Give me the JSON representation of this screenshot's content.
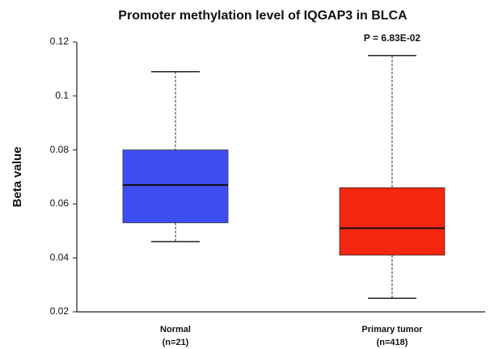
{
  "chart_data": {
    "type": "box",
    "title": "Promoter methylation level of IQGAP3 in BLCA",
    "ylabel": "Beta value",
    "categories": [
      "Normal",
      "Primary tumor"
    ],
    "category_notes": [
      "(n=21)",
      "(n=418)"
    ],
    "annotation": "P = 6.83E-02",
    "boxes": [
      {
        "color": "#3d4df0",
        "whisker_low": 0.046,
        "q1": 0.053,
        "median": 0.067,
        "q3": 0.08,
        "whisker_high": 0.109
      },
      {
        "color": "#f5260f",
        "whisker_low": 0.025,
        "q1": 0.041,
        "median": 0.051,
        "q3": 0.066,
        "whisker_high": 0.115
      }
    ],
    "ylim": [
      0.02,
      0.12
    ],
    "yticks": [
      0.02,
      0.04,
      0.06,
      0.08,
      0.1,
      0.12
    ],
    "grid": false
  }
}
